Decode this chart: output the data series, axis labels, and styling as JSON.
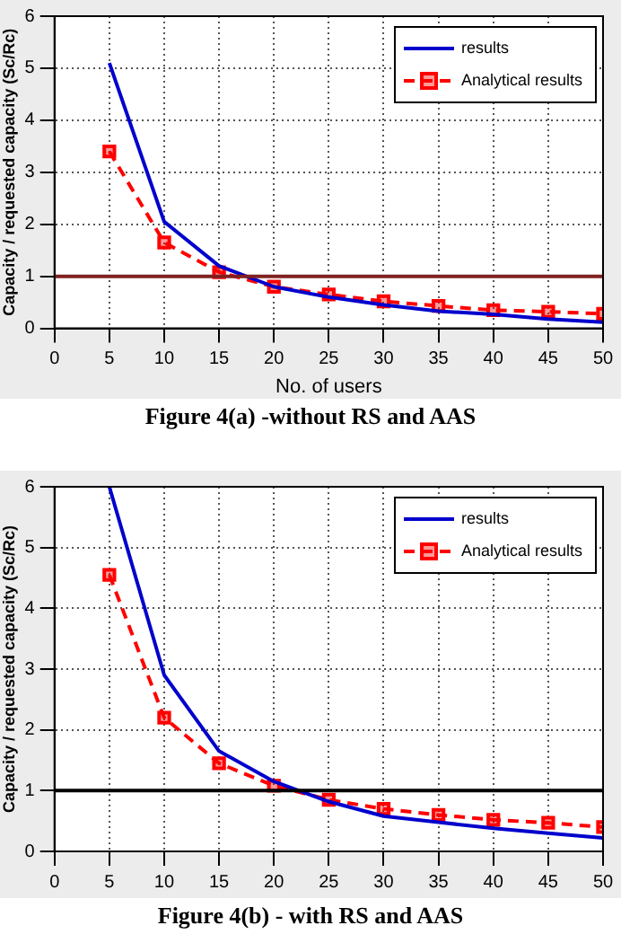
{
  "chart_data": [
    {
      "type": "line",
      "xlabel": "No. of users",
      "ylabel": "Capacity / requested capacity (Sc/Rc)",
      "x": [
        5,
        10,
        15,
        20,
        25,
        30,
        35,
        40,
        45,
        50
      ],
      "xlim": [
        0,
        50
      ],
      "xticks": [
        0,
        5,
        10,
        15,
        20,
        25,
        30,
        35,
        40,
        45,
        50
      ],
      "ylim": [
        0,
        6
      ],
      "yticks": [
        0,
        1,
        2,
        3,
        4,
        5,
        6
      ],
      "grid": true,
      "legend": "top right",
      "series": [
        {
          "name": "results",
          "color": "#0000cc",
          "marker": "none",
          "line_style": "solid",
          "values": [
            5.1,
            2.05,
            1.2,
            0.8,
            0.6,
            0.45,
            0.33,
            0.27,
            0.18,
            0.12
          ]
        },
        {
          "name": "Analytical results",
          "color": "#ff0000",
          "marker": "square",
          "line_style": "dashed",
          "values": [
            3.4,
            1.65,
            1.08,
            0.8,
            0.65,
            0.52,
            0.43,
            0.35,
            0.32,
            0.28
          ]
        }
      ],
      "ref_lines": [
        {
          "axis": "y",
          "value": 1,
          "color": "#802020"
        }
      ],
      "annotations": [
        "Figure 4(a) -without RS and AAS"
      ]
    },
    {
      "type": "line",
      "ylabel": "Capacity / requested capacity (Sc/Rc)",
      "x": [
        5,
        10,
        15,
        20,
        25,
        30,
        35,
        40,
        45,
        50
      ],
      "xlim": [
        0,
        50
      ],
      "xticks": [
        0,
        5,
        10,
        15,
        20,
        25,
        30,
        35,
        40,
        45,
        50
      ],
      "ylim": [
        0,
        6
      ],
      "yticks": [
        0,
        1,
        2,
        3,
        4,
        5,
        6
      ],
      "grid": true,
      "legend": "top right",
      "series": [
        {
          "name": "results",
          "color": "#0000cc",
          "marker": "none",
          "line_style": "solid",
          "values": [
            6,
            2.9,
            1.65,
            1.15,
            0.82,
            0.58,
            0.48,
            0.38,
            0.3,
            0.22
          ]
        },
        {
          "name": "Analytical results",
          "color": "#ff0000",
          "marker": "square",
          "line_style": "dashed",
          "values": [
            4.55,
            2.2,
            1.45,
            1.08,
            0.85,
            0.7,
            0.6,
            0.52,
            0.47,
            0.4
          ]
        }
      ],
      "ref_lines": [
        {
          "axis": "y",
          "value": 1,
          "color": "#000000"
        }
      ],
      "annotations": [
        "Figure 4(b) - with RS and AAS"
      ]
    }
  ]
}
